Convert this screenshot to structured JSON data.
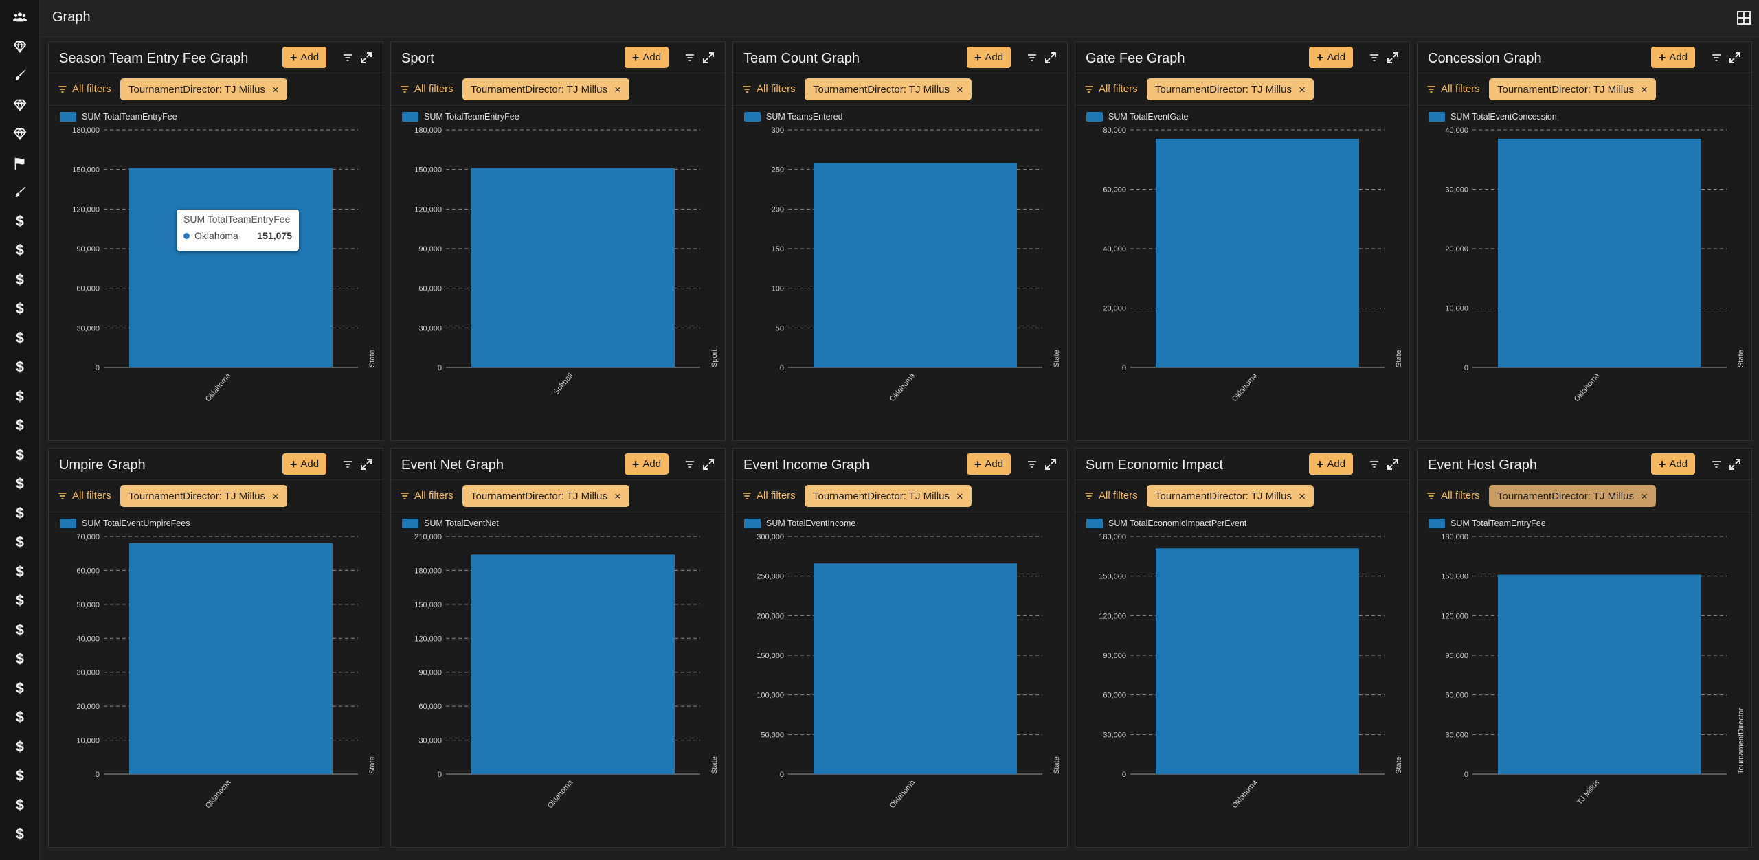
{
  "page": {
    "title": "Graph"
  },
  "colors": {
    "accent": "#f5b860",
    "bar": "#1f77b4",
    "background": "#1b1b1b"
  },
  "sidebar": {
    "icons": [
      "users-icon",
      "diamond-icon",
      "brush-icon",
      "diamond-icon",
      "diamond-icon",
      "flag-icon",
      "brush-icon",
      "dollar-icon",
      "dollar-icon",
      "dollar-icon",
      "dollar-icon",
      "dollar-icon",
      "dollar-icon",
      "dollar-icon",
      "dollar-icon",
      "dollar-icon",
      "dollar-icon",
      "dollar-icon",
      "dollar-icon",
      "dollar-icon",
      "dollar-icon",
      "dollar-icon",
      "dollar-icon",
      "dollar-icon",
      "dollar-icon",
      "dollar-icon",
      "dollar-icon",
      "dollar-icon",
      "dollar-icon"
    ],
    "dollar_glyph": "$"
  },
  "common": {
    "add_label": "Add",
    "all_filters_label": "All filters",
    "filter_chip": "TournamentDirector: TJ Millus",
    "chip_close": "×"
  },
  "tooltip": {
    "title": "SUM TotalTeamEntryFee",
    "label": "Oklahoma",
    "value": "151,075"
  },
  "panels": [
    {
      "title": "Season Team Entry Fee Graph",
      "chart_data": {
        "type": "bar",
        "series": [
          {
            "name": "SUM TotalTeamEntryFee",
            "values": [
              151075
            ]
          }
        ],
        "categories": [
          "Oklahoma"
        ],
        "xlabel": "State",
        "ylim": [
          0,
          180000
        ],
        "yticks": [
          "0",
          "30,000",
          "60,000",
          "90,000",
          "120,000",
          "150,000",
          "180,000"
        ]
      }
    },
    {
      "title": "Sport",
      "chart_data": {
        "type": "bar",
        "series": [
          {
            "name": "SUM TotalTeamEntryFee",
            "values": [
              151075
            ]
          }
        ],
        "categories": [
          "Softball"
        ],
        "xlabel": "Sport",
        "ylim": [
          0,
          180000
        ],
        "yticks": [
          "0",
          "30,000",
          "60,000",
          "90,000",
          "120,000",
          "150,000",
          "180,000"
        ]
      }
    },
    {
      "title": "Team Count Graph",
      "chart_data": {
        "type": "bar",
        "series": [
          {
            "name": "SUM TeamsEntered",
            "values": [
              258
            ]
          }
        ],
        "categories": [
          "Oklahoma"
        ],
        "xlabel": "State",
        "ylim": [
          0,
          300
        ],
        "yticks": [
          "0",
          "50",
          "100",
          "150",
          "200",
          "250",
          "300"
        ]
      }
    },
    {
      "title": "Gate Fee Graph",
      "chart_data": {
        "type": "bar",
        "series": [
          {
            "name": "SUM TotalEventGate",
            "values": [
              77000
            ]
          }
        ],
        "categories": [
          "Oklahoma"
        ],
        "xlabel": "State",
        "ylim": [
          0,
          80000
        ],
        "yticks": [
          "0",
          "20,000",
          "40,000",
          "60,000",
          "80,000"
        ]
      }
    },
    {
      "title": "Concession Graph",
      "chart_data": {
        "type": "bar",
        "series": [
          {
            "name": "SUM TotalEventConcession",
            "values": [
              38500
            ]
          }
        ],
        "categories": [
          "Oklahoma"
        ],
        "xlabel": "State",
        "ylim": [
          0,
          40000
        ],
        "yticks": [
          "0",
          "10,000",
          "20,000",
          "30,000",
          "40,000"
        ]
      }
    },
    {
      "title": "Umpire Graph",
      "chart_data": {
        "type": "bar",
        "series": [
          {
            "name": "SUM TotalEventUmpireFees",
            "values": [
              68000
            ]
          }
        ],
        "categories": [
          "Oklahoma"
        ],
        "xlabel": "State",
        "ylim": [
          0,
          70000
        ],
        "yticks": [
          "0",
          "10,000",
          "20,000",
          "30,000",
          "40,000",
          "50,000",
          "60,000",
          "70,000"
        ]
      }
    },
    {
      "title": "Event Net Graph",
      "chart_data": {
        "type": "bar",
        "series": [
          {
            "name": "SUM TotalEventNet",
            "values": [
              194000
            ]
          }
        ],
        "categories": [
          "Oklahoma"
        ],
        "xlabel": "State",
        "ylim": [
          0,
          210000
        ],
        "yticks": [
          "0",
          "30,000",
          "60,000",
          "90,000",
          "120,000",
          "150,000",
          "180,000",
          "210,000"
        ]
      }
    },
    {
      "title": "Event Income Graph",
      "chart_data": {
        "type": "bar",
        "series": [
          {
            "name": "SUM TotalEventIncome",
            "values": [
              266000
            ]
          }
        ],
        "categories": [
          "Oklahoma"
        ],
        "xlabel": "State",
        "ylim": [
          0,
          300000
        ],
        "yticks": [
          "0",
          "50,000",
          "100,000",
          "150,000",
          "200,000",
          "250,000",
          "300,000"
        ]
      }
    },
    {
      "title": "Sum Economic Impact",
      "chart_data": {
        "type": "bar",
        "series": [
          {
            "name": "SUM TotalEconomicImpactPerEvent",
            "values": [
              171000
            ]
          }
        ],
        "categories": [
          "Oklahoma"
        ],
        "xlabel": "State",
        "ylim": [
          0,
          180000
        ],
        "yticks": [
          "0",
          "30,000",
          "60,000",
          "90,000",
          "120,000",
          "150,000",
          "180,000"
        ]
      }
    },
    {
      "title": "Event Host Graph",
      "chart_data": {
        "type": "bar",
        "series": [
          {
            "name": "SUM TotalTeamEntryFee",
            "values": [
              151075
            ]
          }
        ],
        "categories": [
          "TJ Millus"
        ],
        "xlabel": "TournamentDirector",
        "ylim": [
          0,
          180000
        ],
        "yticks": [
          "0",
          "30,000",
          "60,000",
          "90,000",
          "120,000",
          "150,000",
          "180,000"
        ]
      }
    }
  ]
}
